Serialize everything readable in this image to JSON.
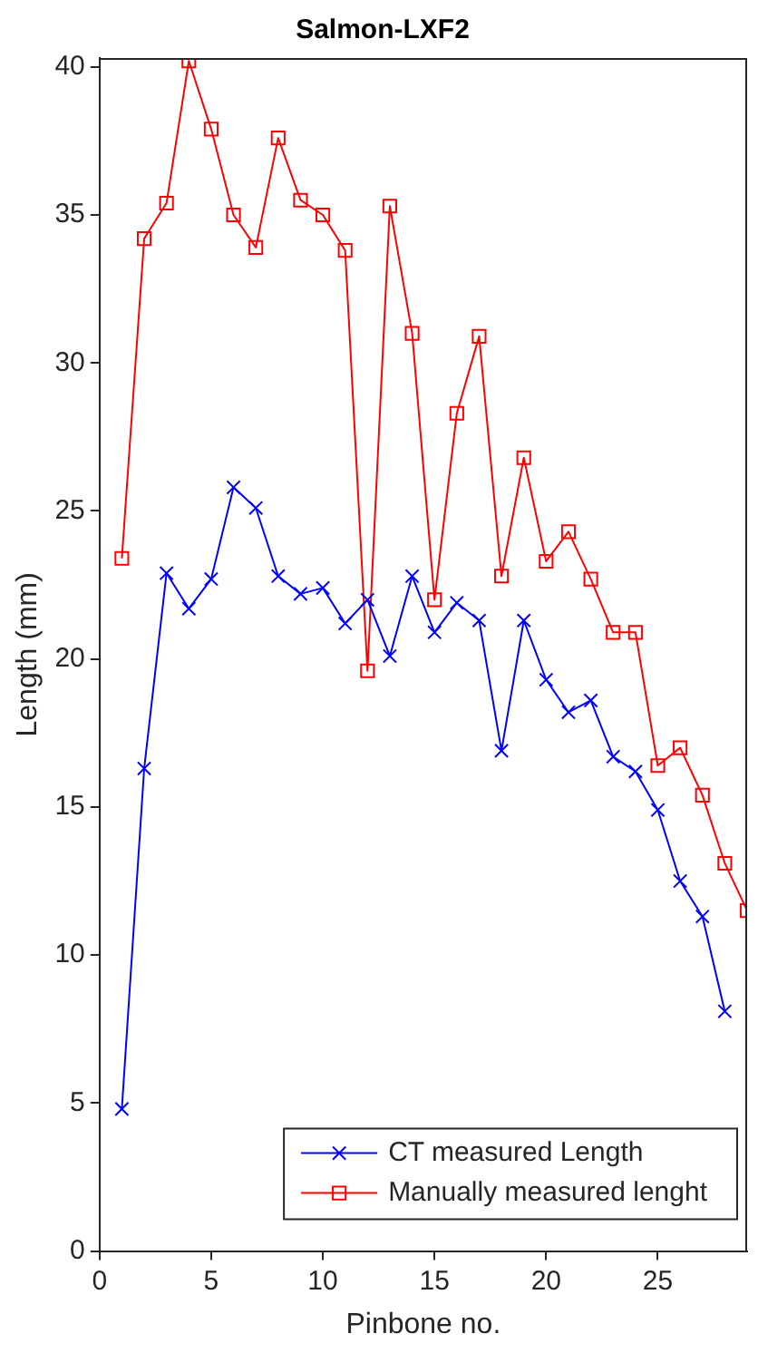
{
  "chart_data": {
    "type": "line",
    "title": "Salmon-LXF2",
    "xlabel": "Pinbone no.",
    "ylabel": "Length (mm)",
    "xlim": [
      0,
      29
    ],
    "xticks": [
      0,
      5,
      10,
      15,
      20,
      25
    ],
    "ylim": [
      0,
      40.3
    ],
    "yticks": [
      0,
      5,
      10,
      15,
      20,
      25,
      30,
      35,
      40
    ],
    "grid": false,
    "legend": "bottom right",
    "series": [
      {
        "name": "CT measured Length",
        "color": "#0000ff",
        "marker": "cross",
        "x": [
          1,
          2,
          3,
          4,
          5,
          6,
          7,
          8,
          9,
          10,
          11,
          12,
          13,
          14,
          15,
          16,
          17,
          18,
          19,
          20,
          21,
          22,
          23,
          24,
          25,
          26,
          27,
          28
        ],
        "values": [
          4.8,
          16.3,
          22.9,
          21.7,
          22.7,
          25.8,
          25.1,
          22.8,
          22.2,
          22.4,
          21.2,
          22.0,
          20.1,
          22.8,
          20.9,
          21.9,
          21.3,
          16.9,
          21.3,
          19.3,
          18.2,
          18.6,
          16.7,
          16.2,
          14.9,
          12.5,
          11.3,
          8.1
        ]
      },
      {
        "name": "Manually measured lenght",
        "color": "#ff0000",
        "marker": "square",
        "x": [
          1,
          2,
          3,
          4,
          5,
          6,
          7,
          8,
          9,
          10,
          11,
          12,
          13,
          14,
          15,
          16,
          17,
          18,
          19,
          20,
          21,
          22,
          23,
          24,
          25,
          26,
          27,
          28,
          29
        ],
        "values": [
          23.4,
          34.2,
          35.4,
          40.2,
          37.9,
          35.0,
          33.9,
          37.6,
          35.5,
          35.0,
          33.8,
          19.6,
          35.3,
          31.0,
          22.0,
          28.3,
          30.9,
          22.8,
          26.8,
          23.3,
          24.3,
          22.7,
          20.9,
          20.9,
          16.4,
          17.0,
          15.4,
          13.1,
          11.5
        ]
      }
    ]
  }
}
